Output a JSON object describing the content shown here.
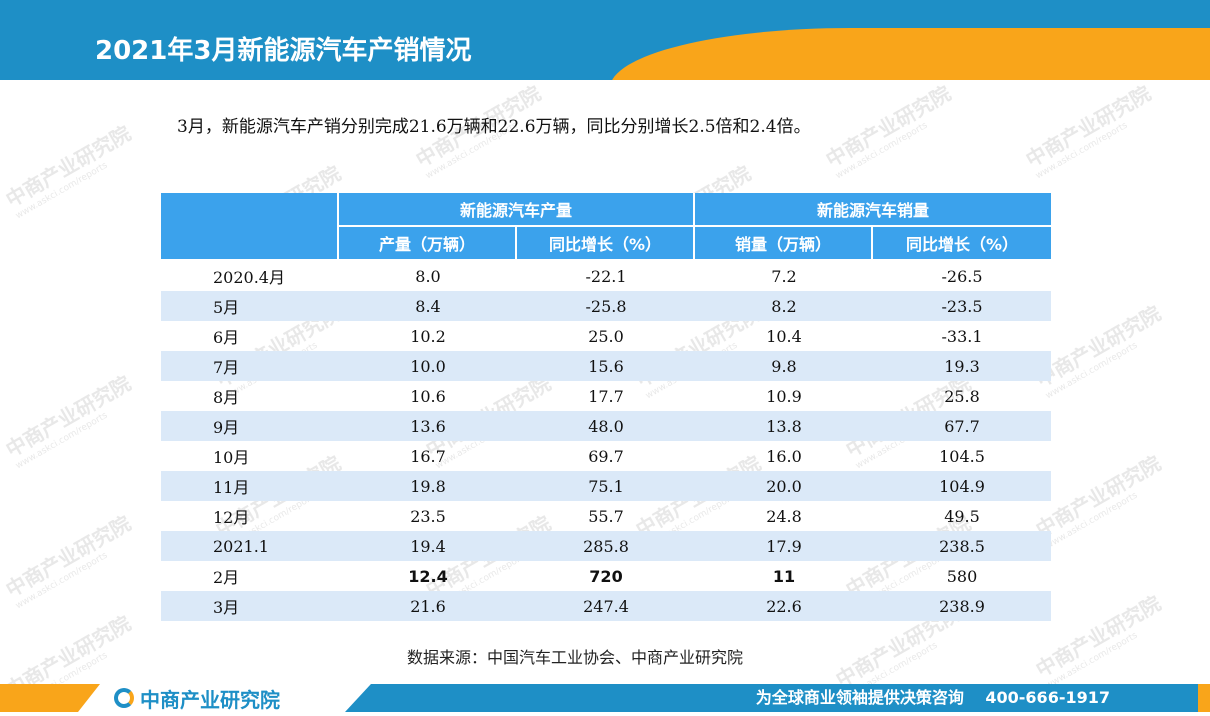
{
  "header": {
    "title": "2021年3月新能源汽车产销情况"
  },
  "summary": "3月，新能源汽车产销分别完成21.6万辆和22.6万辆，同比分别增长2.5倍和2.4倍。",
  "table": {
    "group_headers": [
      "新能源汽车产量",
      "新能源汽车销量"
    ],
    "sub_headers": [
      "产量（万辆）",
      "同比增长（%）",
      "销量（万辆）",
      "同比增长（%）"
    ],
    "rows": [
      {
        "month": "2020.4月",
        "prod": "8.0",
        "prod_yoy": "-22.1",
        "sales": "7.2",
        "sales_yoy": "-26.5"
      },
      {
        "month": "5月",
        "prod": "8.4",
        "prod_yoy": "-25.8",
        "sales": "8.2",
        "sales_yoy": "-23.5"
      },
      {
        "month": "6月",
        "prod": "10.2",
        "prod_yoy": "25.0",
        "sales": "10.4",
        "sales_yoy": "-33.1"
      },
      {
        "month": "7月",
        "prod": "10.0",
        "prod_yoy": "15.6",
        "sales": "9.8",
        "sales_yoy": "19.3"
      },
      {
        "month": "8月",
        "prod": "10.6",
        "prod_yoy": "17.7",
        "sales": "10.9",
        "sales_yoy": "25.8"
      },
      {
        "month": "9月",
        "prod": "13.6",
        "prod_yoy": "48.0",
        "sales": "13.8",
        "sales_yoy": "67.7"
      },
      {
        "month": "10月",
        "prod": "16.7",
        "prod_yoy": "69.7",
        "sales": "16.0",
        "sales_yoy": "104.5"
      },
      {
        "month": "11月",
        "prod": "19.8",
        "prod_yoy": "75.1",
        "sales": "20.0",
        "sales_yoy": "104.9"
      },
      {
        "month": "12月",
        "prod": "23.5",
        "prod_yoy": "55.7",
        "sales": "24.8",
        "sales_yoy": "49.5"
      },
      {
        "month": "2021.1",
        "prod": "19.4",
        "prod_yoy": "285.8",
        "sales": "17.9",
        "sales_yoy": "238.5"
      },
      {
        "month": "2月",
        "prod": "12.4",
        "prod_yoy": "720",
        "sales": "11",
        "sales_yoy": "580"
      },
      {
        "month": "3月",
        "prod": "21.6",
        "prod_yoy": "247.4",
        "sales": "22.6",
        "sales_yoy": "238.9"
      }
    ]
  },
  "source": "数据来源：中国汽车工业协会、中商产业研究院",
  "footer": {
    "brand": "中商产业研究院",
    "slogan": "为全球商业领袖提供决策咨询　 400-666-1917"
  },
  "watermark": {
    "text": "中商产业研究院",
    "url": "www.askci.com/reports"
  },
  "colors": {
    "primary_blue": "#1e8fc6",
    "header_cell_blue": "#3ba2ec",
    "accent_orange": "#f9a51a",
    "stripe": "#dbe9f8"
  }
}
